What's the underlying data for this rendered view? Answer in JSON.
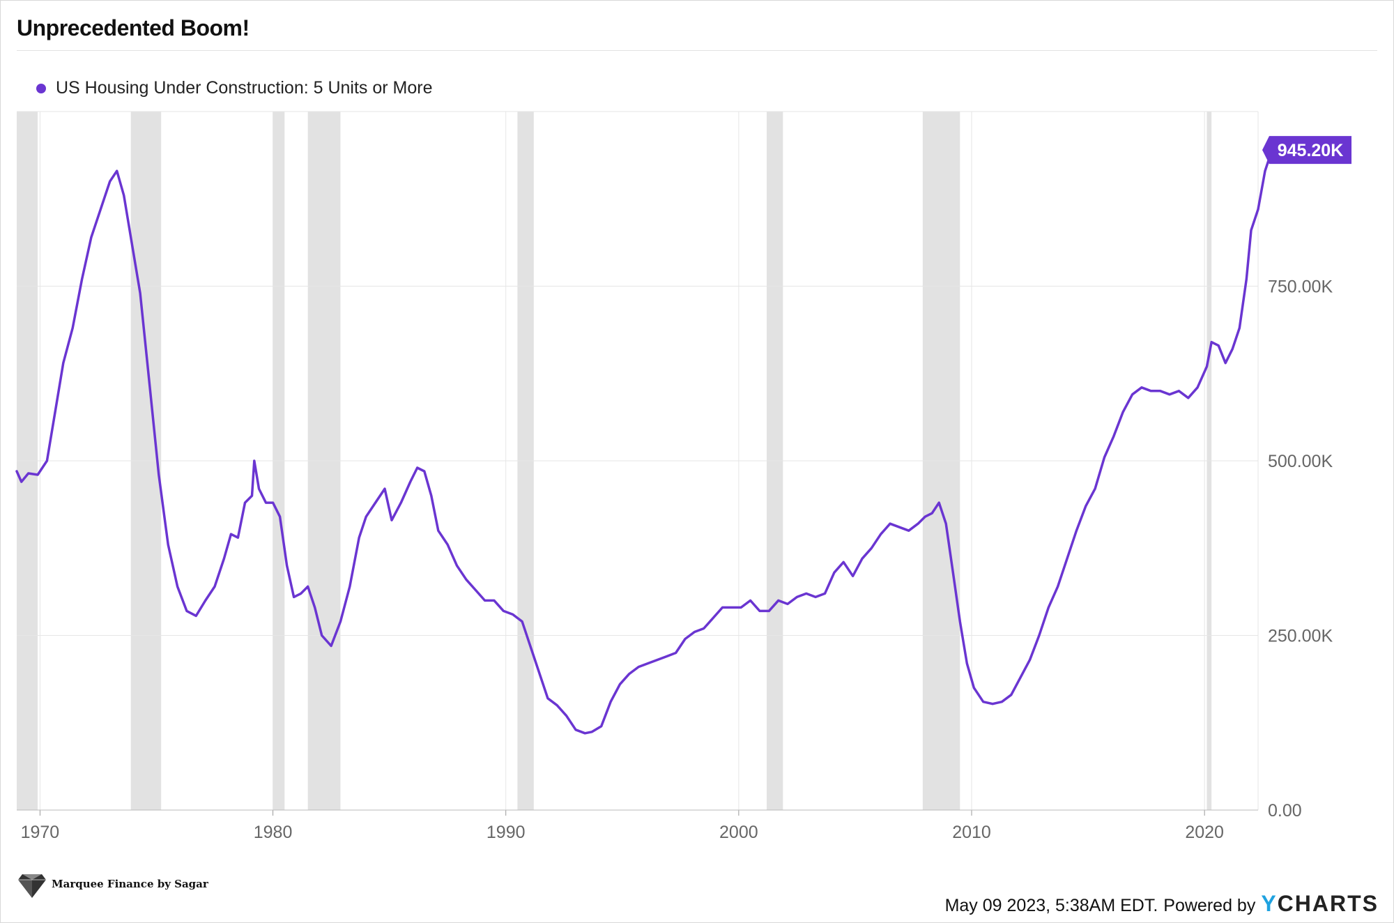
{
  "title": "Unprecedented Boom!",
  "branding": {
    "logo_text": "Marquee Finance by Sagar",
    "timestamp": "May 09 2023, 5:38AM EDT.",
    "powered_by": "Powered by",
    "provider": "YCHARTS",
    "provider_y": "Y",
    "provider_rest": "CHARTS"
  },
  "colors": {
    "series": "#6a35d1",
    "recession": "#e2e2e2",
    "grid": "#e6e6e6",
    "axis_text": "#666666",
    "label_bg": "#6a35d1"
  },
  "chart_data": {
    "type": "line",
    "title": "Unprecedented Boom!",
    "xlabel": "",
    "ylabel": "",
    "ylim": [
      0,
      1000
    ],
    "xlim": [
      1969.0,
      2022.3
    ],
    "y_ticks": [
      0,
      250,
      500,
      750
    ],
    "y_tick_labels": [
      "0.00",
      "250.00K",
      "500.00K",
      "750.00K"
    ],
    "x_ticks": [
      1970,
      1980,
      1990,
      2000,
      2010,
      2020
    ],
    "x_tick_labels": [
      "1970",
      "1980",
      "1990",
      "2000",
      "2010",
      "2020"
    ],
    "last_value_label": "945.20K",
    "legend_position": "top-left",
    "recessions": [
      [
        1969.0,
        1969.9
      ],
      [
        1973.9,
        1975.2
      ],
      [
        1980.0,
        1980.5
      ],
      [
        1981.5,
        1982.9
      ],
      [
        1990.5,
        1991.2
      ],
      [
        2001.2,
        2001.9
      ],
      [
        2007.9,
        2009.5
      ],
      [
        2020.1,
        2020.3
      ]
    ],
    "series": [
      {
        "name": "US Housing Under Construction: 5 Units or More",
        "unit": "thousands",
        "points": [
          [
            1969.0,
            485
          ],
          [
            1969.2,
            470
          ],
          [
            1969.5,
            482
          ],
          [
            1969.9,
            480
          ],
          [
            1970.3,
            500
          ],
          [
            1970.7,
            580
          ],
          [
            1971.0,
            640
          ],
          [
            1971.4,
            690
          ],
          [
            1971.8,
            760
          ],
          [
            1972.2,
            820
          ],
          [
            1972.6,
            860
          ],
          [
            1973.0,
            900
          ],
          [
            1973.3,
            915
          ],
          [
            1973.6,
            880
          ],
          [
            1973.9,
            820
          ],
          [
            1974.3,
            740
          ],
          [
            1974.7,
            610
          ],
          [
            1975.1,
            480
          ],
          [
            1975.5,
            380
          ],
          [
            1975.9,
            320
          ],
          [
            1976.3,
            285
          ],
          [
            1976.7,
            278
          ],
          [
            1977.1,
            300
          ],
          [
            1977.5,
            320
          ],
          [
            1977.9,
            360
          ],
          [
            1978.2,
            395
          ],
          [
            1978.5,
            390
          ],
          [
            1978.8,
            440
          ],
          [
            1979.1,
            450
          ],
          [
            1979.2,
            500
          ],
          [
            1979.4,
            460
          ],
          [
            1979.7,
            440
          ],
          [
            1980.0,
            440
          ],
          [
            1980.3,
            420
          ],
          [
            1980.6,
            350
          ],
          [
            1980.9,
            305
          ],
          [
            1981.2,
            310
          ],
          [
            1981.5,
            320
          ],
          [
            1981.8,
            290
          ],
          [
            1982.1,
            250
          ],
          [
            1982.5,
            235
          ],
          [
            1982.9,
            270
          ],
          [
            1983.3,
            320
          ],
          [
            1983.7,
            390
          ],
          [
            1984.0,
            420
          ],
          [
            1984.4,
            440
          ],
          [
            1984.8,
            460
          ],
          [
            1985.1,
            415
          ],
          [
            1985.5,
            440
          ],
          [
            1985.9,
            470
          ],
          [
            1986.2,
            490
          ],
          [
            1986.5,
            485
          ],
          [
            1986.8,
            450
          ],
          [
            1987.1,
            400
          ],
          [
            1987.5,
            380
          ],
          [
            1987.9,
            350
          ],
          [
            1988.3,
            330
          ],
          [
            1988.7,
            315
          ],
          [
            1989.1,
            300
          ],
          [
            1989.5,
            300
          ],
          [
            1989.9,
            285
          ],
          [
            1990.3,
            280
          ],
          [
            1990.7,
            270
          ],
          [
            1991.0,
            240
          ],
          [
            1991.4,
            200
          ],
          [
            1991.8,
            160
          ],
          [
            1992.2,
            150
          ],
          [
            1992.6,
            135
          ],
          [
            1993.0,
            115
          ],
          [
            1993.4,
            110
          ],
          [
            1993.7,
            112
          ],
          [
            1994.1,
            120
          ],
          [
            1994.5,
            155
          ],
          [
            1994.9,
            180
          ],
          [
            1995.3,
            195
          ],
          [
            1995.7,
            205
          ],
          [
            1996.1,
            210
          ],
          [
            1996.5,
            215
          ],
          [
            1996.9,
            220
          ],
          [
            1997.3,
            225
          ],
          [
            1997.7,
            245
          ],
          [
            1998.1,
            255
          ],
          [
            1998.5,
            260
          ],
          [
            1998.9,
            275
          ],
          [
            1999.3,
            290
          ],
          [
            1999.7,
            290
          ],
          [
            2000.1,
            290
          ],
          [
            2000.5,
            300
          ],
          [
            2000.9,
            285
          ],
          [
            2001.3,
            285
          ],
          [
            2001.7,
            300
          ],
          [
            2002.1,
            295
          ],
          [
            2002.5,
            305
          ],
          [
            2002.9,
            310
          ],
          [
            2003.3,
            305
          ],
          [
            2003.7,
            310
          ],
          [
            2004.1,
            340
          ],
          [
            2004.5,
            355
          ],
          [
            2004.9,
            335
          ],
          [
            2005.3,
            360
          ],
          [
            2005.7,
            375
          ],
          [
            2006.1,
            395
          ],
          [
            2006.5,
            410
          ],
          [
            2006.9,
            405
          ],
          [
            2007.3,
            400
          ],
          [
            2007.7,
            410
          ],
          [
            2008.0,
            420
          ],
          [
            2008.3,
            425
          ],
          [
            2008.6,
            440
          ],
          [
            2008.9,
            410
          ],
          [
            2009.2,
            340
          ],
          [
            2009.5,
            270
          ],
          [
            2009.8,
            210
          ],
          [
            2010.1,
            175
          ],
          [
            2010.5,
            155
          ],
          [
            2010.9,
            152
          ],
          [
            2011.3,
            155
          ],
          [
            2011.7,
            165
          ],
          [
            2012.1,
            190
          ],
          [
            2012.5,
            215
          ],
          [
            2012.9,
            250
          ],
          [
            2013.3,
            290
          ],
          [
            2013.7,
            320
          ],
          [
            2014.1,
            360
          ],
          [
            2014.5,
            400
          ],
          [
            2014.9,
            435
          ],
          [
            2015.3,
            460
          ],
          [
            2015.7,
            505
          ],
          [
            2016.1,
            535
          ],
          [
            2016.5,
            570
          ],
          [
            2016.9,
            595
          ],
          [
            2017.3,
            605
          ],
          [
            2017.7,
            600
          ],
          [
            2018.1,
            600
          ],
          [
            2018.5,
            595
          ],
          [
            2018.9,
            600
          ],
          [
            2019.3,
            590
          ],
          [
            2019.7,
            605
          ],
          [
            2020.1,
            635
          ],
          [
            2020.3,
            670
          ],
          [
            2020.6,
            665
          ],
          [
            2020.9,
            640
          ],
          [
            2021.2,
            660
          ],
          [
            2021.5,
            690
          ],
          [
            2021.8,
            760
          ],
          [
            2022.0,
            830
          ],
          [
            2022.3,
            860
          ],
          [
            2022.6,
            915
          ],
          [
            2022.9,
            945
          ]
        ]
      }
    ]
  }
}
